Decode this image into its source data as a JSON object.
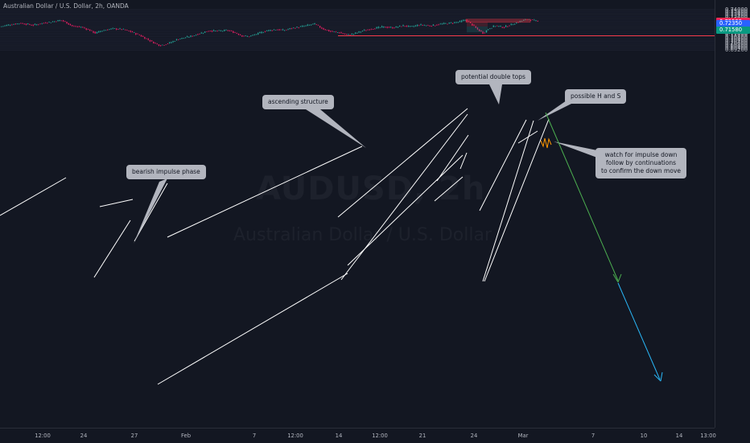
{
  "instrument_title": "Australian Dollar / U.S. Dollar, 2h, OANDA",
  "watermark": {
    "symbol": "AUDUSD, 2h",
    "description": "Australian Dollar / U.S. Dollar"
  },
  "price_axis": {
    "ticks": [
      "0.74000",
      "0.73800",
      "0.73600",
      "0.73400",
      "0.73200",
      "0.73000",
      "0.72800",
      "0.72600",
      "0.72400",
      "0.72200",
      "0.72000",
      "0.71800",
      "0.71600",
      "0.71400",
      "0.71200",
      "0.71000",
      "0.70800",
      "0.70600",
      "0.70400",
      "0.70200",
      "0.70000",
      "0.69800",
      "0.69600",
      "0.69400",
      "0.69200"
    ],
    "tags": [
      {
        "label": "0.72600",
        "color": "#f23645"
      },
      {
        "label": "0.72525",
        "color": "#e91e63"
      },
      {
        "label": "0.72350",
        "color": "#2962ff"
      },
      {
        "label": "0.71580",
        "color": "#089981"
      }
    ]
  },
  "time_axis": {
    "ticks": [
      "12:00",
      "24",
      "27",
      "Feb",
      "7",
      "12:00",
      "14",
      "12:00",
      "21",
      "24",
      "Mar",
      "7",
      "10",
      "14",
      "13:00"
    ]
  },
  "annotations": {
    "bearish": "bearish impulse phase",
    "ascending": "ascending structure",
    "double_tops": "potential double tops",
    "h_and_s": "possible H and S",
    "watch_line1": "watch for impulse down",
    "watch_line2": "follow by continuations",
    "watch_line3": "to confirm the down move"
  },
  "colors": {
    "background": "#131722",
    "bull_candle": "#26a69a",
    "bear_candle": "#e91e63",
    "support_line": "#f23645",
    "green_arrow": "#4caf50",
    "blue_arrow": "#29b6f6",
    "projection": "#ff9800",
    "trendline": "#ffffff"
  },
  "chart_data": {
    "type": "candlestick",
    "instrument": "Australian Dollar / U.S. Dollar",
    "timeframe": "2h",
    "ylim": [
      0.692,
      0.741
    ],
    "support_level": 0.709,
    "double_top_level": 0.7287,
    "target_levels": [
      0.709,
      0.6975
    ],
    "anchors": [
      [
        0,
        0.72
      ],
      [
        10,
        0.722
      ],
      [
        25,
        0.724
      ],
      [
        40,
        0.7215
      ],
      [
        55,
        0.7245
      ],
      [
        66,
        0.726
      ],
      [
        75,
        0.7275
      ],
      [
        82,
        0.7245
      ],
      [
        90,
        0.72
      ],
      [
        100,
        0.7195
      ],
      [
        110,
        0.716
      ],
      [
        118,
        0.712
      ],
      [
        125,
        0.715
      ],
      [
        140,
        0.7175
      ],
      [
        152,
        0.7165
      ],
      [
        163,
        0.7135
      ],
      [
        172,
        0.71
      ],
      [
        182,
        0.705
      ],
      [
        190,
        0.701
      ],
      [
        198,
        0.6975
      ],
      [
        210,
        0.7005
      ],
      [
        220,
        0.705
      ],
      [
        235,
        0.708
      ],
      [
        245,
        0.711
      ],
      [
        258,
        0.715
      ],
      [
        270,
        0.7145
      ],
      [
        282,
        0.7155
      ],
      [
        292,
        0.7125
      ],
      [
        300,
        0.709
      ],
      [
        308,
        0.708
      ],
      [
        318,
        0.711
      ],
      [
        330,
        0.715
      ],
      [
        342,
        0.7165
      ],
      [
        352,
        0.7155
      ],
      [
        362,
        0.718
      ],
      [
        372,
        0.7195
      ],
      [
        380,
        0.721
      ],
      [
        390,
        0.7232
      ],
      [
        400,
        0.7175
      ],
      [
        410,
        0.714
      ],
      [
        420,
        0.713
      ],
      [
        430,
        0.71
      ],
      [
        438,
        0.711
      ],
      [
        450,
        0.715
      ],
      [
        462,
        0.7175
      ],
      [
        475,
        0.7195
      ],
      [
        488,
        0.7185
      ],
      [
        500,
        0.721
      ],
      [
        510,
        0.7195
      ],
      [
        520,
        0.722
      ],
      [
        535,
        0.721
      ],
      [
        548,
        0.723
      ],
      [
        558,
        0.724
      ],
      [
        570,
        0.7255
      ],
      [
        578,
        0.728
      ],
      [
        585,
        0.723
      ],
      [
        592,
        0.717
      ],
      [
        600,
        0.712
      ],
      [
        607,
        0.718
      ],
      [
        615,
        0.721
      ],
      [
        625,
        0.719
      ],
      [
        635,
        0.7225
      ],
      [
        642,
        0.725
      ],
      [
        650,
        0.7275
      ],
      [
        657,
        0.7285
      ],
      [
        665,
        0.7265
      ],
      [
        670,
        0.7255
      ]
    ]
  }
}
